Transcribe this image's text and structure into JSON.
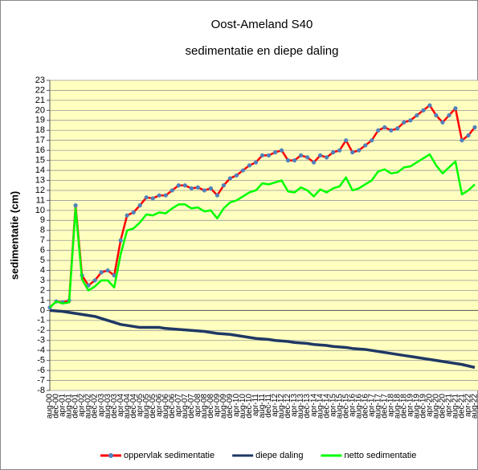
{
  "chart_data": {
    "type": "line",
    "title": "Oost-Ameland S40",
    "subtitle": "sedimentatie en diepe daling",
    "y_label": "sedimentatie (cm)",
    "categories": [
      "aug-00",
      "dec-00",
      "apr-01",
      "aug-01",
      "dec-01",
      "apr-02",
      "aug-02",
      "dec-02",
      "apr-03",
      "aug-03",
      "dec-03",
      "apr-04",
      "aug-04",
      "dec-04",
      "apr-05",
      "aug-05",
      "dec-05",
      "apr-06",
      "aug-06",
      "dec-06",
      "apr-07",
      "aug-07",
      "dec-07",
      "apr-08",
      "aug-08",
      "dec-08",
      "apr-09",
      "aug-09",
      "dec-09",
      "apr-10",
      "aug-10",
      "dec-10",
      "apr-11",
      "aug-11",
      "dec-11",
      "apr-12",
      "aug-12",
      "dec-12",
      "apr-13",
      "aug-13",
      "dec-13",
      "apr-14",
      "aug-14",
      "dec-14",
      "apr-15",
      "aug-15",
      "dec-15",
      "apr-16",
      "aug-16",
      "dec-16",
      "apr-17",
      "aug-17",
      "dec-17",
      "apr-18",
      "aug-18",
      "dec-18",
      "apr-19",
      "aug-19",
      "dec-19",
      "apr-20",
      "aug-20",
      "dec-20",
      "apr-21",
      "aug-21",
      "dec-21",
      "apr-22",
      "aug-22"
    ],
    "series": [
      {
        "name": "oppervlak sedimentatie",
        "color": "#ff0000",
        "marker_color": "#4f81bd",
        "values": [
          0.3,
          0.9,
          0.8,
          1.0,
          10.5,
          3.5,
          2.5,
          3.0,
          3.8,
          4.0,
          3.5,
          7.0,
          9.5,
          9.8,
          10.5,
          11.3,
          11.2,
          11.5,
          11.5,
          12.0,
          12.5,
          12.5,
          12.2,
          12.3,
          12.0,
          12.2,
          11.5,
          12.5,
          13.2,
          13.5,
          14.0,
          14.5,
          14.8,
          15.5,
          15.5,
          15.8,
          16.0,
          15.0,
          15.0,
          15.5,
          15.3,
          14.8,
          15.5,
          15.3,
          15.8,
          16.0,
          17.0,
          15.8,
          16.0,
          16.5,
          17.0,
          18.0,
          18.3,
          18.0,
          18.2,
          18.8,
          19.0,
          19.5,
          20.0,
          20.5,
          19.5,
          18.8,
          19.5,
          20.2,
          17.0,
          17.5,
          18.3
        ]
      },
      {
        "name": "diepe daling",
        "color": "#1f3864",
        "values": [
          0,
          -0.05,
          -0.1,
          -0.2,
          -0.3,
          -0.4,
          -0.5,
          -0.6,
          -0.8,
          -1.0,
          -1.2,
          -1.4,
          -1.5,
          -1.6,
          -1.7,
          -1.7,
          -1.7,
          -1.7,
          -1.8,
          -1.85,
          -1.9,
          -1.95,
          -2.0,
          -2.05,
          -2.1,
          -2.2,
          -2.3,
          -2.35,
          -2.4,
          -2.5,
          -2.6,
          -2.7,
          -2.8,
          -2.85,
          -2.9,
          -3.0,
          -3.05,
          -3.1,
          -3.2,
          -3.25,
          -3.3,
          -3.4,
          -3.45,
          -3.5,
          -3.6,
          -3.65,
          -3.7,
          -3.8,
          -3.85,
          -3.9,
          -4.0,
          -4.1,
          -4.2,
          -4.3,
          -4.4,
          -4.5,
          -4.6,
          -4.7,
          -4.8,
          -4.9,
          -5.0,
          -5.1,
          -5.2,
          -5.3,
          -5.4,
          -5.55,
          -5.7
        ]
      },
      {
        "name": "netto sedimentatie",
        "color": "#00ff00",
        "values": [
          0.3,
          0.9,
          0.7,
          0.8,
          10.2,
          3.1,
          2.0,
          2.4,
          3.0,
          3.0,
          2.3,
          5.6,
          8.0,
          8.2,
          8.8,
          9.6,
          9.5,
          9.8,
          9.7,
          10.2,
          10.6,
          10.6,
          10.2,
          10.3,
          9.9,
          10.0,
          9.2,
          10.2,
          10.8,
          11.0,
          11.4,
          11.8,
          12.0,
          12.7,
          12.6,
          12.8,
          13.0,
          11.9,
          11.8,
          12.3,
          12.0,
          11.4,
          12.1,
          11.8,
          12.2,
          12.4,
          13.3,
          12.0,
          12.2,
          12.6,
          13.0,
          13.9,
          14.1,
          13.7,
          13.8,
          14.3,
          14.4,
          14.8,
          15.2,
          15.6,
          14.5,
          13.7,
          14.3,
          14.9,
          11.6,
          12.0,
          12.6
        ]
      }
    ],
    "ylim": [
      -8,
      23
    ],
    "yticks": [
      -8,
      -7,
      -6,
      -5,
      -4,
      -3,
      -2,
      -1,
      0,
      1,
      2,
      3,
      4,
      5,
      6,
      7,
      8,
      9,
      10,
      11,
      12,
      13,
      14,
      15,
      16,
      17,
      18,
      19,
      20,
      21,
      22,
      23
    ],
    "grid": true,
    "plot_background": "#ffffc0",
    "legend": "bottom"
  }
}
